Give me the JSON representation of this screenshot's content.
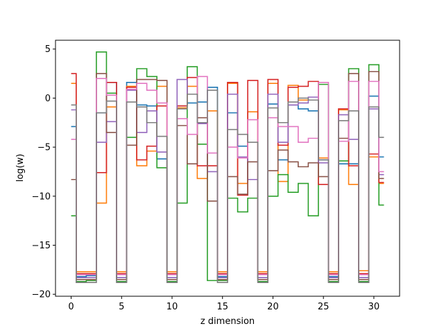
{
  "chart_data": {
    "type": "line",
    "drawstyle": "steps-mid",
    "xlabel": "z dimension",
    "ylabel": "log(w)",
    "xlim": [
      -1.55,
      32.55
    ],
    "ylim": [
      -20.2,
      5.9
    ],
    "xticks": [
      0,
      5,
      10,
      15,
      20,
      25,
      30
    ],
    "yticks": [
      -20,
      -15,
      -10,
      -5,
      0,
      5
    ],
    "grid": false,
    "legend": false,
    "x": [
      0,
      1,
      2,
      3,
      4,
      5,
      6,
      7,
      8,
      9,
      10,
      11,
      12,
      13,
      14,
      15,
      16,
      17,
      18,
      19,
      20,
      21,
      22,
      23,
      24,
      25,
      26,
      27,
      28,
      29,
      30,
      31
    ],
    "series": [
      {
        "color": "#1f77b4",
        "values": [
          -2.9,
          -18.2,
          -18.1,
          -1.5,
          1.6,
          -18.3,
          1.6,
          -0.7,
          -0.8,
          -6.2,
          -18.3,
          -0.8,
          -0.5,
          -0.4,
          1.1,
          -18.2,
          -1.5,
          -4.9,
          -8.3,
          -18.3,
          -0.6,
          -6.3,
          -0.7,
          -1.1,
          -1.3,
          -6.3,
          -18.2,
          -6.7,
          -6.7,
          -18.3,
          0.2,
          -6.0
        ]
      },
      {
        "color": "#ff7f0e",
        "values": [
          1.5,
          -17.7,
          -17.7,
          -10.7,
          -0.9,
          -17.7,
          1.2,
          -6.9,
          -5.4,
          1.2,
          -17.7,
          -1.0,
          1.2,
          -8.2,
          -1.3,
          -17.7,
          1.5,
          -8.7,
          -1.4,
          -17.7,
          1.5,
          -8.5,
          1.3,
          -0.2,
          -0.2,
          -6.1,
          -17.7,
          -1.2,
          -8.8,
          -17.6,
          -6.0,
          -8.7
        ]
      },
      {
        "color": "#2ca02c",
        "values": [
          -12.0,
          -18.7,
          -18.6,
          4.7,
          0.5,
          -18.7,
          -4.0,
          3.0,
          2.2,
          -7.1,
          -18.7,
          -10.7,
          3.2,
          -4.7,
          -18.6,
          -18.6,
          -10.2,
          -11.6,
          -10.2,
          -18.7,
          -10.0,
          -7.8,
          -9.6,
          -8.7,
          -12.0,
          1.4,
          -18.7,
          -6.4,
          3.0,
          -18.7,
          3.4,
          -10.9
        ]
      },
      {
        "color": "#d62728",
        "values": [
          2.5,
          -17.9,
          -17.9,
          -7.6,
          1.6,
          -17.9,
          1.1,
          -6.3,
          -4.9,
          -0.8,
          -17.9,
          -0.8,
          2.1,
          -6.9,
          -6.9,
          -17.9,
          1.6,
          -9.9,
          1.8,
          -17.9,
          1.9,
          -4.8,
          1.1,
          1.2,
          1.7,
          -8.8,
          -17.9,
          -1.1,
          -6.9,
          -17.9,
          -5.7,
          -8.6
        ]
      },
      {
        "color": "#9467bd",
        "values": [
          -1.2,
          -18.3,
          -18.3,
          -4.5,
          -2.4,
          -18.3,
          0.8,
          -3.5,
          -1.3,
          -5.5,
          -18.3,
          1.9,
          0.4,
          -2.6,
          -7.5,
          -18.3,
          0.4,
          -6.0,
          -8.3,
          -18.3,
          0.4,
          -4.5,
          -0.7,
          -0.5,
          0.1,
          -6.6,
          -18.3,
          -1.7,
          -4.2,
          -18.3,
          -1.1,
          -7.8
        ]
      },
      {
        "color": "#8c564b",
        "values": [
          -8.3,
          -18.5,
          -18.5,
          2.5,
          -3.5,
          -18.5,
          -4.8,
          1.9,
          1.9,
          1.8,
          -18.5,
          -2.8,
          -6.7,
          -2.0,
          -10.5,
          -18.5,
          -8.0,
          -9.8,
          -6.5,
          -18.5,
          -7.4,
          -5.3,
          -6.5,
          -7.0,
          -6.6,
          -8.0,
          -18.5,
          -4.1,
          2.5,
          -18.5,
          2.7,
          -8.2
        ]
      },
      {
        "color": "#e377c2",
        "values": [
          -4.2,
          -18.0,
          -18.0,
          2.0,
          0.3,
          -18.0,
          0.9,
          1.5,
          0.8,
          -0.5,
          -18.0,
          -2.1,
          -3.7,
          2.2,
          -5.6,
          -18.0,
          -5.0,
          -6.1,
          -2.2,
          -18.0,
          -2.0,
          -2.9,
          -2.9,
          -4.5,
          -4.1,
          1.6,
          -18.0,
          -4.4,
          1.7,
          -18.0,
          1.7,
          -7.5
        ]
      },
      {
        "color": "#7f7f7f",
        "values": [
          -0.7,
          -18.8,
          -18.8,
          -1.5,
          -0.3,
          -18.8,
          -0.4,
          -0.9,
          -2.5,
          -3.9,
          -18.8,
          -1.1,
          0.4,
          -2.5,
          0.8,
          -18.8,
          -3.2,
          -3.7,
          -4.5,
          -18.8,
          -1.0,
          -2.5,
          -0.4,
          0.0,
          -0.2,
          -6.3,
          -18.8,
          -2.3,
          -1.3,
          -18.8,
          -0.9,
          -4.0
        ]
      }
    ]
  }
}
